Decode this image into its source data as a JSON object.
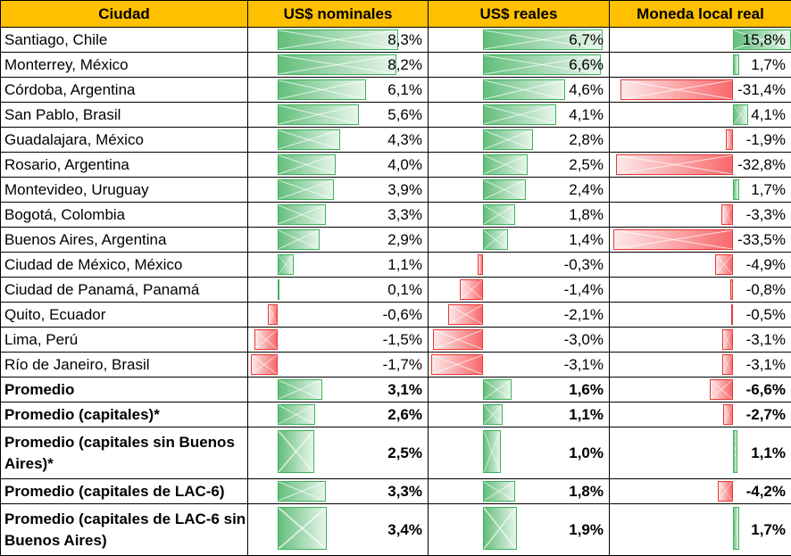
{
  "colors": {
    "header_bg": "#ffc000",
    "positive_bar": "#63be7b",
    "negative_bar": "#f8696b"
  },
  "headers": [
    "Ciudad",
    "US$ nominales",
    "US$ reales",
    "Moneda local real"
  ],
  "rows": [
    {
      "city": "Santiago, Chile",
      "nom": "8,3%",
      "real": "6,7%",
      "local": "15,8%",
      "v": [
        8.3,
        6.7,
        15.8
      ]
    },
    {
      "city": "Monterrey, México",
      "nom": "8,2%",
      "real": "6,6%",
      "local": "1,7%",
      "v": [
        8.2,
        6.6,
        1.7
      ]
    },
    {
      "city": "Córdoba, Argentina",
      "nom": "6,1%",
      "real": "4,6%",
      "local": "-31,4%",
      "v": [
        6.1,
        4.6,
        -31.4
      ]
    },
    {
      "city": "San Pablo, Brasil",
      "nom": "5,6%",
      "real": "4,1%",
      "local": "4,1%",
      "v": [
        5.6,
        4.1,
        4.1
      ]
    },
    {
      "city": "Guadalajara, México",
      "nom": "4,3%",
      "real": "2,8%",
      "local": "-1,9%",
      "v": [
        4.3,
        2.8,
        -1.9
      ]
    },
    {
      "city": "Rosario, Argentina",
      "nom": "4,0%",
      "real": "2,5%",
      "local": "-32,8%",
      "v": [
        4.0,
        2.5,
        -32.8
      ]
    },
    {
      "city": "Montevideo, Uruguay",
      "nom": "3,9%",
      "real": "2,4%",
      "local": "1,7%",
      "v": [
        3.9,
        2.4,
        1.7
      ]
    },
    {
      "city": "Bogotá, Colombia",
      "nom": "3,3%",
      "real": "1,8%",
      "local": "-3,3%",
      "v": [
        3.3,
        1.8,
        -3.3
      ]
    },
    {
      "city": "Buenos Aires, Argentina",
      "nom": "2,9%",
      "real": "1,4%",
      "local": "-33,5%",
      "v": [
        2.9,
        1.4,
        -33.5
      ]
    },
    {
      "city": "Ciudad de México, México",
      "nom": "1,1%",
      "real": "-0,3%",
      "local": "-4,9%",
      "v": [
        1.1,
        -0.3,
        -4.9
      ]
    },
    {
      "city": "Ciudad de Panamá, Panamá",
      "nom": "0,1%",
      "real": "-1,4%",
      "local": "-0,8%",
      "v": [
        0.1,
        -1.4,
        -0.8
      ]
    },
    {
      "city": "Quito, Ecuador",
      "nom": "-0,6%",
      "real": "-2,1%",
      "local": "-0,5%",
      "v": [
        -0.6,
        -2.1,
        -0.5
      ]
    },
    {
      "city": "Lima, Perú",
      "nom": "-1,5%",
      "real": "-3,0%",
      "local": "-3,1%",
      "v": [
        -1.5,
        -3.0,
        -3.1
      ]
    },
    {
      "city": "Río de Janeiro, Brasil",
      "nom": "-1,7%",
      "real": "-3,1%",
      "local": "-3,1%",
      "v": [
        -1.7,
        -3.1,
        -3.1
      ]
    },
    {
      "city": "Promedio",
      "nom": "3,1%",
      "real": "1,6%",
      "local": "-6,6%",
      "v": [
        3.1,
        1.6,
        -6.6
      ],
      "bold": true
    },
    {
      "city": "Promedio (capitales)*",
      "nom": "2,6%",
      "real": "1,1%",
      "local": "-2,7%",
      "v": [
        2.6,
        1.1,
        -2.7
      ],
      "bold": true
    },
    {
      "city": "Promedio (capitales sin Buenos Aires)*",
      "nom": "2,5%",
      "real": "1,0%",
      "local": "1,1%",
      "v": [
        2.5,
        1.0,
        1.1
      ],
      "bold": true,
      "tall": true
    },
    {
      "city": "Promedio (capitales de LAC-6)",
      "nom": "3,3%",
      "real": "1,8%",
      "local": "-4,2%",
      "v": [
        3.3,
        1.8,
        -4.2
      ],
      "bold": true
    },
    {
      "city": "Promedio (capitales de LAC-6 sin Buenos Aires)",
      "nom": "3,4%",
      "real": "1,9%",
      "local": "1,7%",
      "v": [
        3.4,
        1.9,
        1.7
      ],
      "bold": true,
      "tall": true
    }
  ]
}
